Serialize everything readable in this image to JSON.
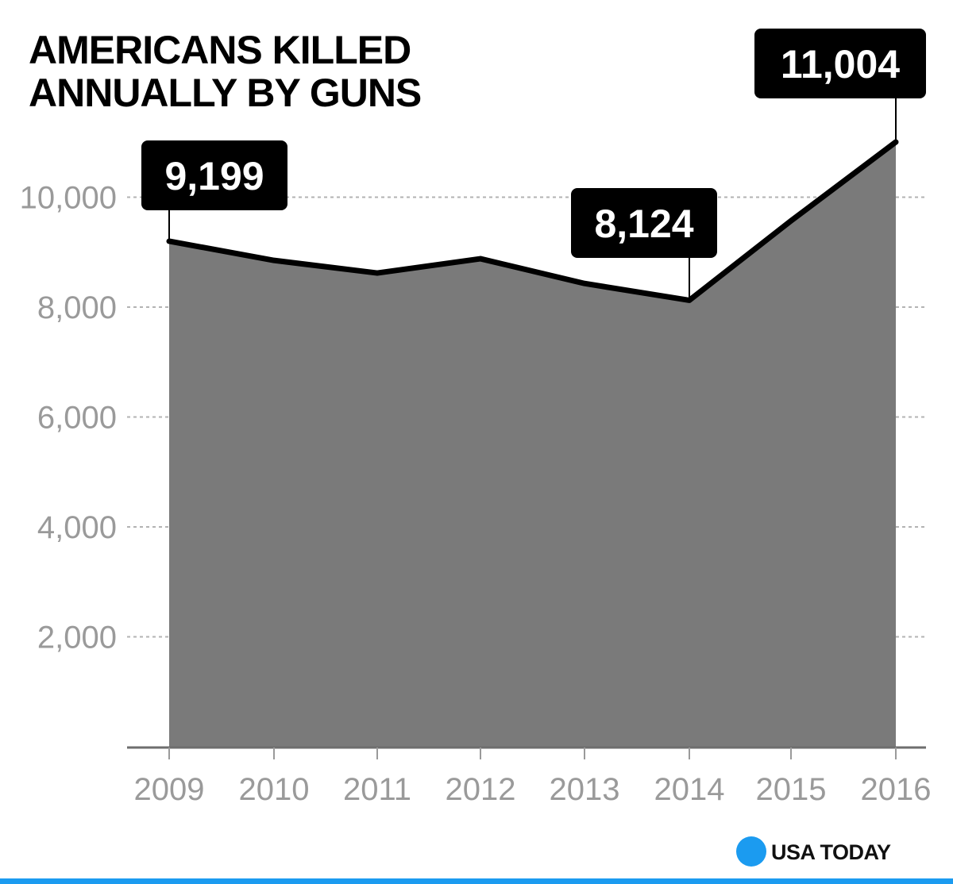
{
  "chart_data": {
    "type": "area",
    "title_lines": [
      "AMERICANS KILLED",
      "ANNUALLY BY GUNS"
    ],
    "categories": [
      "2009",
      "2010",
      "2011",
      "2012",
      "2013",
      "2014",
      "2015",
      "2016"
    ],
    "series": [
      {
        "name": "Americans killed annually by guns",
        "values": [
          9199,
          8850,
          8620,
          8880,
          8430,
          8124,
          9570,
          11004
        ]
      }
    ],
    "y_ticks": [
      {
        "value": 2000,
        "label": "2,000"
      },
      {
        "value": 4000,
        "label": "4,000"
      },
      {
        "value": 6000,
        "label": "6,000"
      },
      {
        "value": 8000,
        "label": "8,000"
      },
      {
        "value": 10000,
        "label": "10,000"
      }
    ],
    "ylim": [
      0,
      11000
    ],
    "xlabel": "",
    "ylabel": "",
    "grid": true,
    "callouts": [
      {
        "category": "2009",
        "label": "9,199"
      },
      {
        "category": "2014",
        "label": "8,124"
      },
      {
        "category": "2016",
        "label": "11,004"
      }
    ],
    "colors": {
      "area_fill": "#7a7a7a",
      "line": "#000000",
      "gridline": "#b3b3b3",
      "tick_text": "#9a9a9a",
      "callout_bg": "#000000",
      "callout_text": "#ffffff",
      "logo_circle": "#1b9bf0",
      "bottom_rule": "#1b9bf0"
    }
  },
  "branding": {
    "logo_text": "USA TODAY"
  }
}
